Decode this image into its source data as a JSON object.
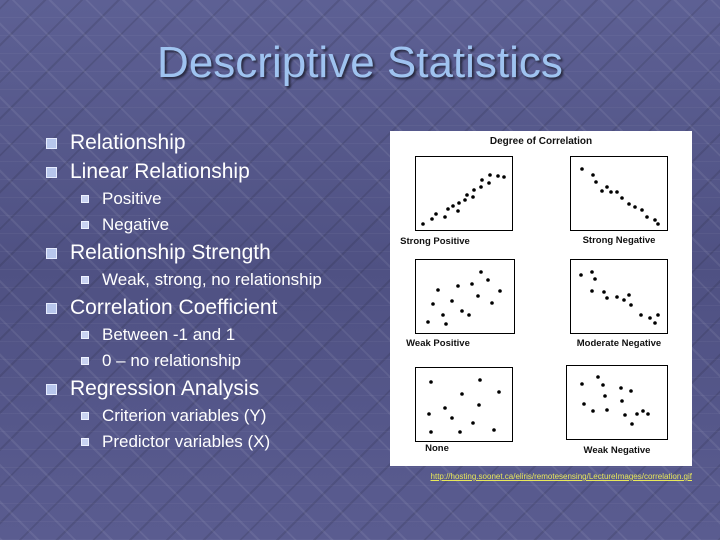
{
  "slide": {
    "title": "Descriptive Statistics",
    "bullets": [
      {
        "text": "Relationship",
        "level": 1
      },
      {
        "text": "Linear Relationship",
        "level": 1
      },
      {
        "text": "Positive",
        "level": 2
      },
      {
        "text": "Negative",
        "level": 2
      },
      {
        "text": "Relationship Strength",
        "level": 1
      },
      {
        "text": "Weak, strong, no relationship",
        "level": 2
      },
      {
        "text": "Correlation Coefficient",
        "level": 1
      },
      {
        "text": "Between -1 and 1",
        "level": 2
      },
      {
        "text": "0 – no relationship",
        "level": 2
      },
      {
        "text": "Regression Analysis",
        "level": 1
      },
      {
        "text": "Criterion variables (Y)",
        "level": 2
      },
      {
        "text": "Predictor variables (X)",
        "level": 2
      }
    ],
    "source_link": "http://hosting.soonet.ca/eliris/remotesensing/LectureImages/correlation.gif",
    "colors": {
      "title": "#9fc3f0",
      "text": "#ffffff",
      "link": "#e8e85a"
    }
  },
  "figure": {
    "title": "Degree of Correlation",
    "panels": [
      {
        "label": "Strong Positive"
      },
      {
        "label": "Strong Negative"
      },
      {
        "label": "Weak Positive"
      },
      {
        "label": "Moderate Negative"
      },
      {
        "label": "None"
      },
      {
        "label": "Weak Negative"
      }
    ]
  }
}
